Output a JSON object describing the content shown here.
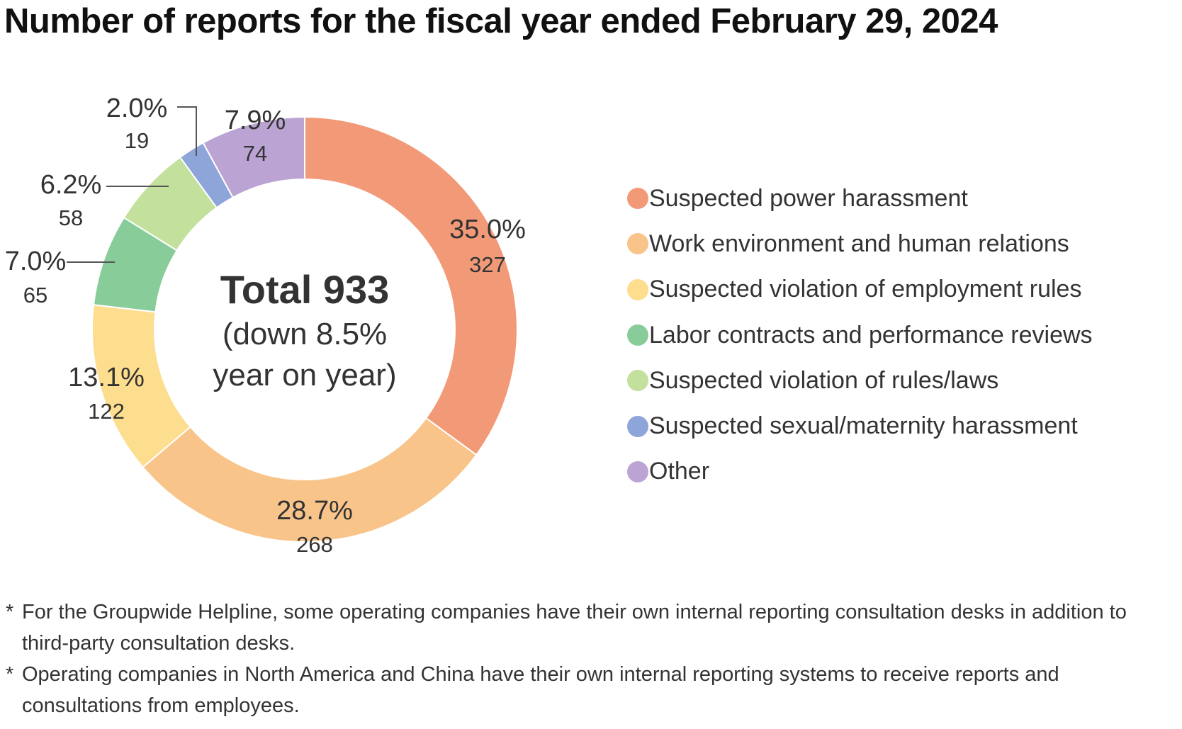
{
  "title": "Number of reports for the fiscal year ended February 29, 2024",
  "chart_data": {
    "type": "pie",
    "title": "Number of reports for the fiscal year ended February 29, 2024",
    "center": {
      "total": "Total 933",
      "line1": "(down 8.5%",
      "line2": "year on year)"
    },
    "legend_placement": "right",
    "slices": [
      {
        "label": "Suspected power harassment",
        "value": 327,
        "percent": "35.0%",
        "count": "327",
        "color": "#F29A78"
      },
      {
        "label": "Work environment and human relations",
        "value": 268,
        "percent": "28.7%",
        "count": "268",
        "color": "#F8C48A"
      },
      {
        "label": "Suspected violation of employment rules",
        "value": 122,
        "percent": "13.1%",
        "count": "122",
        "color": "#FDDD8E"
      },
      {
        "label": "Labor contracts and performance reviews",
        "value": 65,
        "percent": "7.0%",
        "count": "65",
        "color": "#88CC99"
      },
      {
        "label": "Suspected violation of rules/laws",
        "value": 58,
        "percent": "6.2%",
        "count": "58",
        "color": "#C3E09C"
      },
      {
        "label": "Suspected sexual/maternity harassment",
        "value": 19,
        "percent": "2.0%",
        "count": "19",
        "color": "#8EA5DA"
      },
      {
        "label": "Other",
        "value": 74,
        "percent": "7.9%",
        "count": "74",
        "color": "#BBA4D3"
      }
    ]
  },
  "notes": [
    {
      "mark": "*",
      "text": "For the Groupwide Helpline, some operating companies have their own internal reporting consultation desks in addition to third-party consultation desks."
    },
    {
      "mark": "*",
      "text": "Operating companies in North America and China have their own internal reporting systems to receive reports and consultations from employees."
    }
  ]
}
